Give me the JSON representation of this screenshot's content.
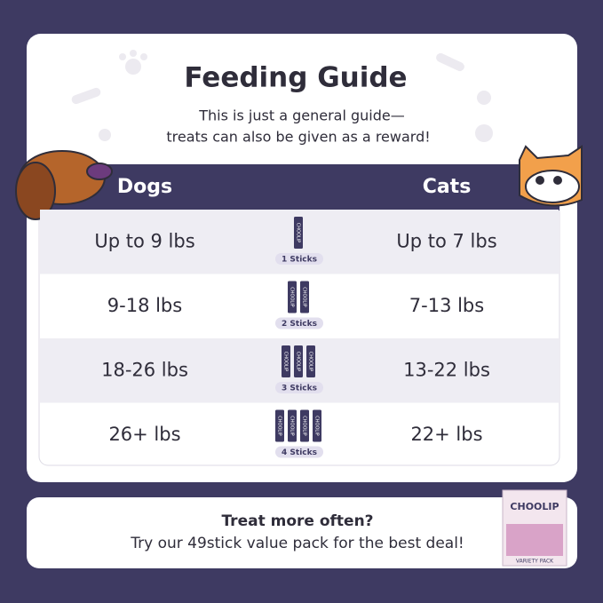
{
  "title": "Feeding Guide",
  "subtitle": [
    "This is just a general guide—",
    "treats can also be given as a reward!"
  ],
  "table": {
    "headers": [
      "Dogs",
      "Cats"
    ],
    "rows": [
      {
        "dogs": "Up to 9 lbs",
        "sticks": "1 Sticks",
        "cats": "Up to 7 lbs"
      },
      {
        "dogs": "9-18 lbs",
        "sticks": "2 Sticks",
        "cats": "7-13 lbs"
      },
      {
        "dogs": "18-26 lbs",
        "sticks": "3 Sticks",
        "cats": "13-22 lbs"
      },
      {
        "dogs": "26+ lbs",
        "sticks": "4 Sticks",
        "cats": "22+ lbs"
      }
    ]
  },
  "stick_brand": "CHOOLIP",
  "footer": [
    "Treat more often?",
    "Try our 49stick value pack for the best deal!"
  ],
  "pack": {
    "brand": "CHOOLIP",
    "variant": "VARIETY PACK"
  }
}
